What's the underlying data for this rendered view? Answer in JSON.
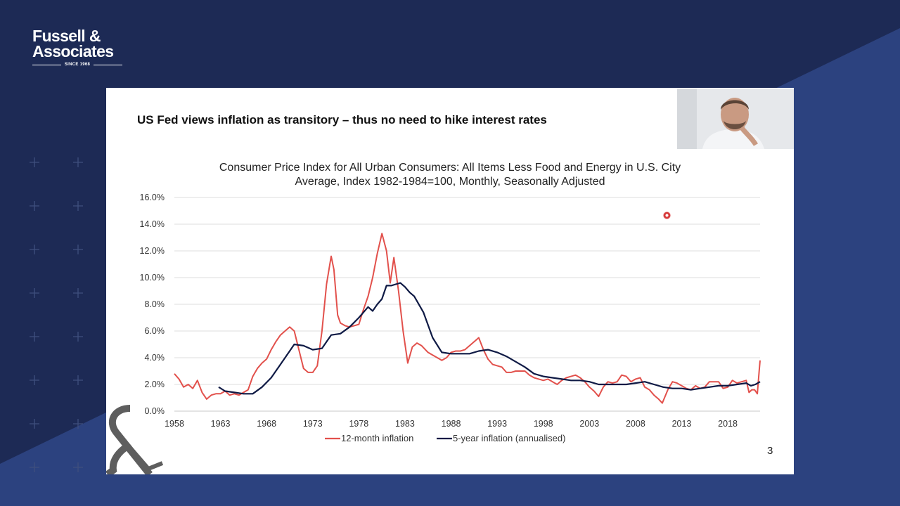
{
  "brand": {
    "line1": "Fussell &",
    "line2": "Associates",
    "tagline": "SINCE 1968"
  },
  "slide": {
    "title": "US Fed views inflation as transitory – thus no need to hike interest rates",
    "page_number": "3"
  },
  "webcam": {
    "label": "presenter-video"
  },
  "colors": {
    "background_dark": "#1d2a55",
    "background_band": "#2c427f",
    "series_12m": "#e2514c",
    "series_5y": "#0f1a45",
    "gridline": "#dedede"
  },
  "chart_data": {
    "type": "line",
    "title_line1": "Consumer Price Index for All Urban Consumers: All Items Less Food and Energy in U.S. City",
    "title_line2": "Average, Index 1982-1984=100, Monthly, Seasonally Adjusted",
    "xlabel": "",
    "ylabel": "",
    "xlim": [
      1958,
      2021.5
    ],
    "ylim": [
      0,
      16
    ],
    "x_ticks": [
      1958,
      1963,
      1968,
      1973,
      1978,
      1983,
      1988,
      1993,
      1998,
      2003,
      2008,
      2013,
      2018
    ],
    "y_ticks": [
      0,
      2,
      4,
      6,
      8,
      10,
      12,
      14,
      16
    ],
    "y_tick_labels": [
      "0.0%",
      "2.0%",
      "4.0%",
      "6.0%",
      "8.0%",
      "10.0%",
      "12.0%",
      "14.0%",
      "16.0%"
    ],
    "grid": "horizontal",
    "legend_position": "bottom",
    "series": [
      {
        "name": "12-month inflation",
        "color": "#e2514c",
        "points": [
          [
            1958.0,
            2.8
          ],
          [
            1958.5,
            2.4
          ],
          [
            1959.0,
            1.8
          ],
          [
            1959.5,
            2.0
          ],
          [
            1960.0,
            1.7
          ],
          [
            1960.5,
            2.3
          ],
          [
            1961.0,
            1.4
          ],
          [
            1961.5,
            0.9
          ],
          [
            1962.0,
            1.2
          ],
          [
            1962.5,
            1.3
          ],
          [
            1963.0,
            1.3
          ],
          [
            1963.5,
            1.5
          ],
          [
            1964.0,
            1.2
          ],
          [
            1964.5,
            1.3
          ],
          [
            1965.0,
            1.2
          ],
          [
            1965.5,
            1.4
          ],
          [
            1966.0,
            1.6
          ],
          [
            1966.5,
            2.6
          ],
          [
            1967.0,
            3.2
          ],
          [
            1967.5,
            3.6
          ],
          [
            1968.0,
            3.9
          ],
          [
            1968.5,
            4.6
          ],
          [
            1969.0,
            5.2
          ],
          [
            1969.5,
            5.7
          ],
          [
            1970.0,
            6.0
          ],
          [
            1970.5,
            6.3
          ],
          [
            1971.0,
            6.0
          ],
          [
            1971.5,
            4.6
          ],
          [
            1972.0,
            3.2
          ],
          [
            1972.5,
            2.9
          ],
          [
            1973.0,
            2.9
          ],
          [
            1973.5,
            3.4
          ],
          [
            1974.0,
            6.0
          ],
          [
            1974.5,
            9.5
          ],
          [
            1975.0,
            11.6
          ],
          [
            1975.3,
            10.6
          ],
          [
            1975.7,
            7.2
          ],
          [
            1976.0,
            6.6
          ],
          [
            1976.5,
            6.4
          ],
          [
            1977.0,
            6.3
          ],
          [
            1977.5,
            6.4
          ],
          [
            1978.0,
            6.5
          ],
          [
            1978.5,
            7.6
          ],
          [
            1979.0,
            8.6
          ],
          [
            1979.5,
            10.0
          ],
          [
            1980.0,
            11.8
          ],
          [
            1980.5,
            13.3
          ],
          [
            1981.0,
            12.0
          ],
          [
            1981.4,
            9.6
          ],
          [
            1981.8,
            11.5
          ],
          [
            1982.3,
            9.0
          ],
          [
            1982.8,
            6.0
          ],
          [
            1983.3,
            3.6
          ],
          [
            1983.8,
            4.8
          ],
          [
            1984.3,
            5.1
          ],
          [
            1984.8,
            4.9
          ],
          [
            1985.5,
            4.4
          ],
          [
            1986.0,
            4.2
          ],
          [
            1986.5,
            4.0
          ],
          [
            1987.0,
            3.8
          ],
          [
            1987.5,
            4.0
          ],
          [
            1988.0,
            4.4
          ],
          [
            1988.5,
            4.5
          ],
          [
            1989.0,
            4.5
          ],
          [
            1989.5,
            4.6
          ],
          [
            1990.0,
            4.9
          ],
          [
            1990.5,
            5.2
          ],
          [
            1991.0,
            5.5
          ],
          [
            1991.5,
            4.6
          ],
          [
            1992.0,
            3.9
          ],
          [
            1992.5,
            3.5
          ],
          [
            1993.0,
            3.4
          ],
          [
            1993.5,
            3.3
          ],
          [
            1994.0,
            2.9
          ],
          [
            1994.5,
            2.9
          ],
          [
            1995.0,
            3.0
          ],
          [
            1995.5,
            3.0
          ],
          [
            1996.0,
            3.0
          ],
          [
            1996.5,
            2.7
          ],
          [
            1997.0,
            2.5
          ],
          [
            1997.5,
            2.4
          ],
          [
            1998.0,
            2.3
          ],
          [
            1998.5,
            2.4
          ],
          [
            1999.0,
            2.2
          ],
          [
            1999.5,
            2.0
          ],
          [
            2000.0,
            2.3
          ],
          [
            2000.5,
            2.5
          ],
          [
            2001.0,
            2.6
          ],
          [
            2001.5,
            2.7
          ],
          [
            2002.0,
            2.5
          ],
          [
            2002.5,
            2.2
          ],
          [
            2003.0,
            1.8
          ],
          [
            2003.5,
            1.5
          ],
          [
            2004.0,
            1.1
          ],
          [
            2004.5,
            1.8
          ],
          [
            2005.0,
            2.2
          ],
          [
            2005.5,
            2.1
          ],
          [
            2006.0,
            2.2
          ],
          [
            2006.5,
            2.7
          ],
          [
            2007.0,
            2.6
          ],
          [
            2007.5,
            2.2
          ],
          [
            2008.0,
            2.4
          ],
          [
            2008.5,
            2.5
          ],
          [
            2009.0,
            1.8
          ],
          [
            2009.5,
            1.6
          ],
          [
            2010.0,
            1.2
          ],
          [
            2010.5,
            0.9
          ],
          [
            2010.9,
            0.6
          ],
          [
            2011.5,
            1.6
          ],
          [
            2012.0,
            2.2
          ],
          [
            2012.5,
            2.1
          ],
          [
            2013.0,
            1.9
          ],
          [
            2013.5,
            1.7
          ],
          [
            2014.0,
            1.6
          ],
          [
            2014.5,
            1.9
          ],
          [
            2015.0,
            1.7
          ],
          [
            2015.5,
            1.8
          ],
          [
            2016.0,
            2.2
          ],
          [
            2016.5,
            2.2
          ],
          [
            2017.0,
            2.2
          ],
          [
            2017.5,
            1.7
          ],
          [
            2018.0,
            1.8
          ],
          [
            2018.5,
            2.3
          ],
          [
            2019.0,
            2.1
          ],
          [
            2019.5,
            2.2
          ],
          [
            2020.0,
            2.3
          ],
          [
            2020.3,
            1.4
          ],
          [
            2020.6,
            1.6
          ],
          [
            2020.9,
            1.6
          ],
          [
            2021.2,
            1.3
          ],
          [
            2021.4,
            3.0
          ],
          [
            2021.5,
            3.8
          ]
        ]
      },
      {
        "name": "5-year inflation (annualised)",
        "color": "#0f1a45",
        "points": [
          [
            1962.8,
            1.8
          ],
          [
            1963.5,
            1.5
          ],
          [
            1964.5,
            1.4
          ],
          [
            1965.5,
            1.3
          ],
          [
            1966.5,
            1.3
          ],
          [
            1967.5,
            1.8
          ],
          [
            1968.5,
            2.5
          ],
          [
            1969.5,
            3.5
          ],
          [
            1970.5,
            4.5
          ],
          [
            1971.0,
            5.0
          ],
          [
            1972.0,
            4.9
          ],
          [
            1973.0,
            4.6
          ],
          [
            1974.0,
            4.7
          ],
          [
            1975.0,
            5.7
          ],
          [
            1976.0,
            5.8
          ],
          [
            1977.0,
            6.3
          ],
          [
            1978.0,
            7.0
          ],
          [
            1979.0,
            7.8
          ],
          [
            1979.5,
            7.5
          ],
          [
            1980.0,
            8.0
          ],
          [
            1980.5,
            8.4
          ],
          [
            1981.0,
            9.4
          ],
          [
            1981.5,
            9.4
          ],
          [
            1982.0,
            9.5
          ],
          [
            1982.5,
            9.6
          ],
          [
            1983.0,
            9.3
          ],
          [
            1983.5,
            8.9
          ],
          [
            1984.0,
            8.6
          ],
          [
            1985.0,
            7.4
          ],
          [
            1986.0,
            5.5
          ],
          [
            1987.0,
            4.4
          ],
          [
            1988.0,
            4.3
          ],
          [
            1989.0,
            4.3
          ],
          [
            1990.0,
            4.3
          ],
          [
            1991.0,
            4.5
          ],
          [
            1992.0,
            4.6
          ],
          [
            1993.0,
            4.4
          ],
          [
            1994.0,
            4.1
          ],
          [
            1995.0,
            3.7
          ],
          [
            1996.0,
            3.3
          ],
          [
            1997.0,
            2.8
          ],
          [
            1998.0,
            2.6
          ],
          [
            1999.0,
            2.5
          ],
          [
            2000.0,
            2.4
          ],
          [
            2001.0,
            2.3
          ],
          [
            2002.0,
            2.3
          ],
          [
            2003.0,
            2.2
          ],
          [
            2004.0,
            2.0
          ],
          [
            2005.0,
            2.0
          ],
          [
            2006.0,
            2.0
          ],
          [
            2007.0,
            2.0
          ],
          [
            2008.0,
            2.1
          ],
          [
            2009.0,
            2.2
          ],
          [
            2010.0,
            2.0
          ],
          [
            2011.0,
            1.8
          ],
          [
            2012.0,
            1.7
          ],
          [
            2013.0,
            1.7
          ],
          [
            2014.0,
            1.6
          ],
          [
            2015.0,
            1.7
          ],
          [
            2016.0,
            1.8
          ],
          [
            2017.0,
            1.9
          ],
          [
            2018.0,
            1.9
          ],
          [
            2019.0,
            2.0
          ],
          [
            2020.0,
            2.1
          ],
          [
            2020.5,
            1.9
          ],
          [
            2021.0,
            2.0
          ],
          [
            2021.5,
            2.2
          ]
        ]
      }
    ]
  }
}
